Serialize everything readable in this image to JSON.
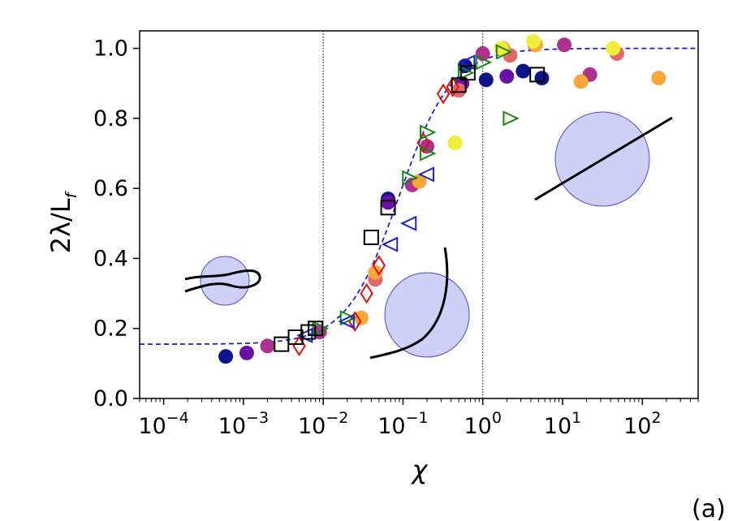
{
  "chart_data": {
    "type": "scatter",
    "title": "",
    "xlabel": "χ",
    "ylabel_main": "2λ/L",
    "ylabel_sub": "f",
    "panel_label": "(a)",
    "xscale": "log",
    "xlim": [
      5e-05,
      500
    ],
    "ylim": [
      0,
      1.05
    ],
    "yticks": [
      {
        "value": 0.0,
        "label": "0.0"
      },
      {
        "value": 0.2,
        "label": "0.2"
      },
      {
        "value": 0.4,
        "label": "0.4"
      },
      {
        "value": 0.6,
        "label": "0.6"
      },
      {
        "value": 0.8,
        "label": "0.8"
      },
      {
        "value": 1.0,
        "label": "1.0"
      }
    ],
    "xticks": [
      {
        "exp": -4,
        "base": "10",
        "sup": "−4"
      },
      {
        "exp": -3,
        "base": "10",
        "sup": "−3"
      },
      {
        "exp": -2,
        "base": "10",
        "sup": "−2"
      },
      {
        "exp": -1,
        "base": "10",
        "sup": "−1"
      },
      {
        "exp": 0,
        "base": "10",
        "sup": "0"
      },
      {
        "exp": 1,
        "base": "10",
        "sup": "1"
      },
      {
        "exp": 2,
        "base": "10",
        "sup": "2"
      }
    ],
    "vlines": [
      0.01,
      1
    ],
    "fit_curve": {
      "color": "#1f1fd6",
      "style": "dashed",
      "low": 0.155,
      "high": 1.0,
      "center_log10": -1.05,
      "width": 0.33
    },
    "colors": {
      "navy": "#10148a",
      "purple": "#6a10a8",
      "magenta": "#b03090",
      "salmon": "#e06a6a",
      "orange": "#f7a83a",
      "yellow": "#f0ee3a",
      "red": "#e01010",
      "green": "#108a10",
      "blue": "#1f1fd6",
      "black": "#000000",
      "disc_fill": "#cfd0f5",
      "disc_stroke": "#4a4ad0"
    },
    "series": [
      {
        "marker": "circle",
        "color": "navy",
        "points": [
          [
            0.0006,
            0.12
          ],
          [
            0.065,
            0.57
          ],
          [
            0.6,
            0.95
          ],
          [
            1.1,
            0.91
          ],
          [
            3.2,
            0.935
          ],
          [
            5.5,
            0.915
          ]
        ]
      },
      {
        "marker": "circle",
        "color": "purple",
        "points": [
          [
            0.0011,
            0.13
          ],
          [
            0.065,
            0.56
          ],
          [
            0.55,
            0.9
          ],
          [
            2.0,
            0.92
          ]
        ]
      },
      {
        "marker": "circle",
        "color": "magenta",
        "points": [
          [
            0.002,
            0.15
          ],
          [
            0.009,
            0.19
          ],
          [
            0.13,
            0.61
          ],
          [
            0.2,
            0.72
          ],
          [
            1.0,
            0.985
          ],
          [
            4.5,
            1.01
          ],
          [
            10.5,
            1.01
          ],
          [
            22,
            0.925
          ]
        ]
      },
      {
        "marker": "circle",
        "color": "salmon",
        "points": [
          [
            0.045,
            0.34
          ],
          [
            0.5,
            0.88
          ],
          [
            2.2,
            0.98
          ],
          [
            48,
            0.985
          ]
        ]
      },
      {
        "marker": "circle",
        "color": "orange",
        "points": [
          [
            0.03,
            0.23
          ],
          [
            0.045,
            0.36
          ],
          [
            0.16,
            0.62
          ],
          [
            1.8,
            1.0
          ],
          [
            4.6,
            1.01
          ],
          [
            17,
            0.905
          ],
          [
            160,
            0.915
          ]
        ]
      },
      {
        "marker": "circle",
        "color": "yellow",
        "points": [
          [
            0.45,
            0.73
          ],
          [
            1.7,
            1.0
          ],
          [
            4.3,
            1.02
          ],
          [
            43,
            1.0
          ]
        ]
      },
      {
        "marker": "diamond",
        "color": "red",
        "points": [
          [
            0.005,
            0.15
          ],
          [
            0.025,
            0.22
          ],
          [
            0.035,
            0.3
          ],
          [
            0.05,
            0.38
          ],
          [
            0.18,
            0.73
          ],
          [
            0.32,
            0.87
          ],
          [
            0.42,
            0.89
          ]
        ]
      },
      {
        "marker": "tri-right",
        "color": "green",
        "points": [
          [
            0.009,
            0.2
          ],
          [
            0.02,
            0.23
          ],
          [
            0.12,
            0.63
          ],
          [
            0.2,
            0.76
          ],
          [
            0.2,
            0.7
          ],
          [
            0.6,
            0.93
          ],
          [
            1.0,
            0.96
          ],
          [
            1.8,
            0.99
          ],
          [
            2.2,
            0.8
          ]
        ]
      },
      {
        "marker": "tri-left",
        "color": "blue",
        "points": [
          [
            0.006,
            0.18
          ],
          [
            0.02,
            0.22
          ],
          [
            0.07,
            0.44
          ],
          [
            0.12,
            0.5
          ],
          [
            0.2,
            0.64
          ],
          [
            0.65,
            0.96
          ]
        ]
      },
      {
        "marker": "square",
        "color": "black",
        "points": [
          [
            0.003,
            0.155
          ],
          [
            0.0045,
            0.175
          ],
          [
            0.0065,
            0.19
          ],
          [
            0.008,
            0.2
          ],
          [
            0.04,
            0.46
          ],
          [
            0.065,
            0.545
          ],
          [
            0.5,
            0.895
          ],
          [
            0.65,
            0.93
          ],
          [
            4.8,
            0.925
          ]
        ]
      }
    ]
  }
}
